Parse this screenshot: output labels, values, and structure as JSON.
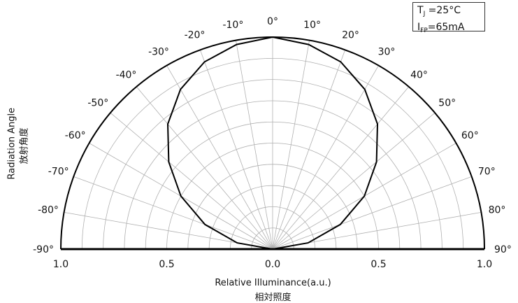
{
  "chart_data": {
    "type": "polar-line",
    "conditions": [
      {
        "symbol": "T",
        "sub": "J",
        "text": " =25°C"
      },
      {
        "symbol": "I",
        "sub": "FP",
        "text": "=65mA"
      }
    ],
    "angle_range": [
      -90,
      90
    ],
    "angle_ticks": [
      -90,
      -80,
      -70,
      -60,
      -50,
      -40,
      -30,
      -20,
      -10,
      0,
      10,
      20,
      30,
      40,
      50,
      60,
      70,
      80,
      90
    ],
    "angle_tick_labels": [
      "-90°",
      "-80°",
      "-70°",
      "-60°",
      "-50°",
      "-40°",
      "-30°",
      "-20°",
      "-10°",
      "0°",
      "10°",
      "20°",
      "30°",
      "40°",
      "50°",
      "60°",
      "70°",
      "80°",
      "90°"
    ],
    "radial_range": [
      0,
      1.0
    ],
    "radial_tick_labels": [
      "1.0",
      "0.5",
      "0.0",
      "0.5",
      "1.0"
    ],
    "xlabel": "Relative Illuminance(a.u.)",
    "xlabel_cn": "相対照度",
    "ylabel": "Radiation Angle",
    "ylabel_cn": "放射角度",
    "grid": true,
    "series": [
      {
        "angles": [
          -90,
          -80,
          -70,
          -60,
          -50,
          -40,
          -30,
          -20,
          -10,
          0,
          10,
          20,
          30,
          40,
          50,
          60,
          70,
          80,
          90
        ],
        "values": [
          0.0,
          0.17,
          0.34,
          0.5,
          0.64,
          0.77,
          0.87,
          0.94,
          0.98,
          1.0,
          0.98,
          0.94,
          0.87,
          0.77,
          0.64,
          0.5,
          0.34,
          0.17,
          0.0
        ]
      }
    ],
    "colors": {
      "curve": "#000000",
      "grid": "#b0b0b0",
      "frame": "#000000"
    }
  }
}
